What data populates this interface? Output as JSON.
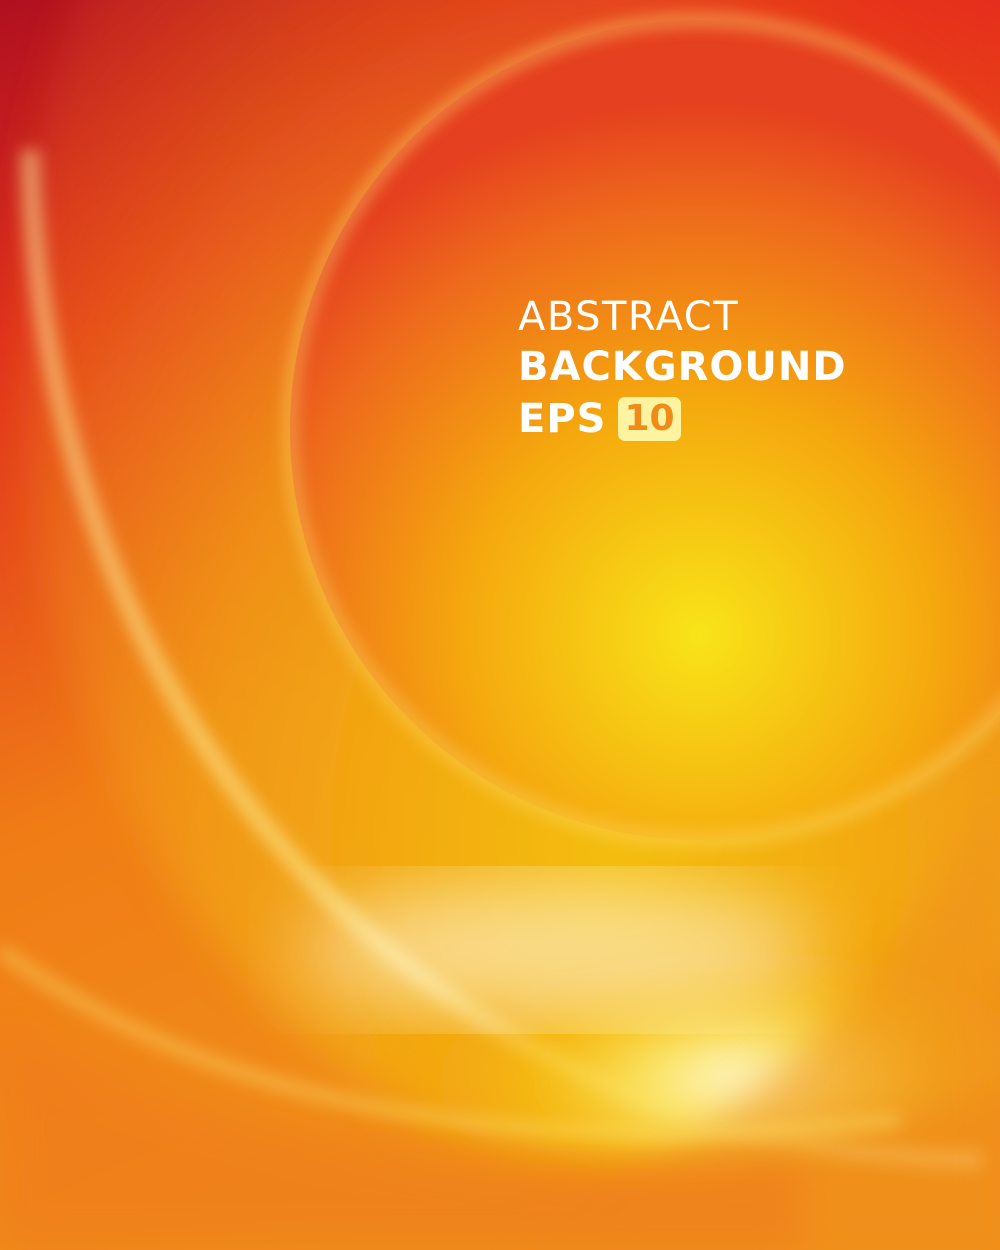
{
  "artwork": {
    "colors": {
      "deep_red": "#a8101e",
      "red": "#e20a26",
      "orange": "#f07a18",
      "yellow": "#f8d80a",
      "pale_yellow": "#fdf7c8",
      "white": "#ffffff"
    }
  },
  "title": {
    "line1": "ABSTRACT",
    "line2": "BACKGROUND",
    "line3_text": "EPS",
    "line3_badge": "10"
  }
}
